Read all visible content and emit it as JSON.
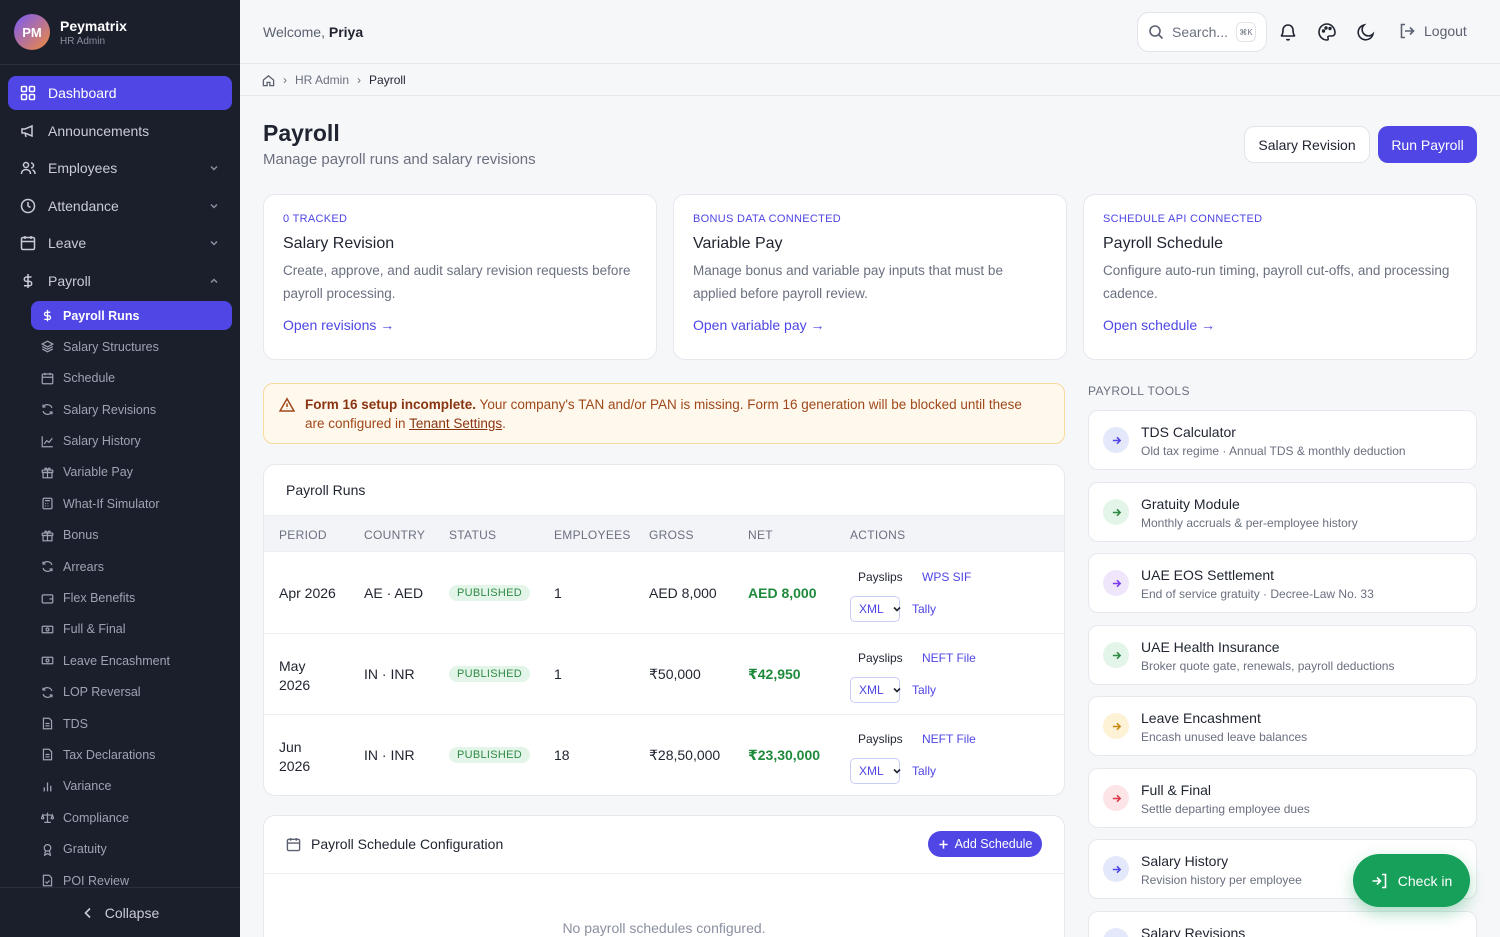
{
  "brand": {
    "initials": "PM",
    "name": "Peymatrix",
    "role": "HR Admin"
  },
  "nav": [
    {
      "label": "Dashboard",
      "icon": "grid-icon",
      "active": true
    },
    {
      "label": "Announcements",
      "icon": "megaphone-icon"
    },
    {
      "label": "Employees",
      "icon": "users-icon",
      "chevron": "down"
    },
    {
      "label": "Attendance",
      "icon": "clock-icon",
      "chevron": "down"
    },
    {
      "label": "Leave",
      "icon": "calendar-icon",
      "chevron": "down"
    },
    {
      "label": "Payroll",
      "icon": "dollar-icon",
      "chevron": "up"
    }
  ],
  "payroll_sub": [
    {
      "label": "Payroll Runs",
      "active": true
    },
    {
      "label": "Salary Structures"
    },
    {
      "label": "Schedule"
    },
    {
      "label": "Salary Revisions"
    },
    {
      "label": "Salary History"
    },
    {
      "label": "Variable Pay"
    },
    {
      "label": "What-If Simulator"
    },
    {
      "label": "Bonus"
    },
    {
      "label": "Arrears"
    },
    {
      "label": "Flex Benefits"
    },
    {
      "label": "Full & Final"
    },
    {
      "label": "Leave Encashment"
    },
    {
      "label": "LOP Reversal"
    },
    {
      "label": "TDS"
    },
    {
      "label": "Tax Declarations"
    },
    {
      "label": "Variance"
    },
    {
      "label": "Compliance"
    },
    {
      "label": "Gratuity"
    },
    {
      "label": "POI Review"
    }
  ],
  "collapse_label": "Collapse",
  "header": {
    "welcome": "Welcome,",
    "user": "Priya",
    "search_placeholder": "Search...",
    "search_kbd": "⌘K",
    "logout": "Logout"
  },
  "breadcrumb": {
    "parent": "HR Admin",
    "current": "Payroll"
  },
  "page": {
    "title": "Payroll",
    "subtitle": "Manage payroll runs and salary revisions",
    "btn_revision": "Salary Revision",
    "btn_run": "Run Payroll"
  },
  "feature_cards": [
    {
      "tag": "0 TRACKED",
      "title": "Salary Revision",
      "desc": "Create, approve, and audit salary revision requests before payroll processing.",
      "link": "Open revisions →"
    },
    {
      "tag": "BONUS DATA CONNECTED",
      "title": "Variable Pay",
      "desc": "Manage bonus and variable pay inputs that must be applied before payroll review.",
      "link": "Open variable pay →"
    },
    {
      "tag": "SCHEDULE API CONNECTED",
      "title": "Payroll Schedule",
      "desc": "Configure auto-run timing, payroll cut-offs, and processing cadence.",
      "link": "Open schedule →"
    }
  ],
  "alert": {
    "bold": "Form 16 setup incomplete.",
    "text": " Your company's TAN and/or PAN is missing. Form 16 generation will be blocked until these are configured in ",
    "link": "Tenant Settings",
    "end": "."
  },
  "runs": {
    "title": "Payroll Runs",
    "columns": [
      "PERIOD",
      "COUNTRY",
      "STATUS",
      "EMPLOYEES",
      "GROSS",
      "NET",
      "ACTIONS"
    ],
    "rows": [
      {
        "period": "Apr 2026",
        "country": "AE · AED",
        "status": "PUBLISHED",
        "employees": "1",
        "gross": "AED 8,000",
        "net": "AED 8,000",
        "payslips": "Payslips",
        "file": "WPS SIF",
        "format": "XML",
        "tally": "Tally"
      },
      {
        "period": "May 2026",
        "country": "IN · INR",
        "status": "PUBLISHED",
        "employees": "1",
        "gross": "₹50,000",
        "net": "₹42,950",
        "payslips": "Payslips",
        "file": "NEFT File",
        "format": "XML",
        "tally": "Tally"
      },
      {
        "period": "Jun 2026",
        "country": "IN · INR",
        "status": "PUBLISHED",
        "employees": "18",
        "gross": "₹28,50,000",
        "net": "₹23,30,000",
        "payslips": "Payslips",
        "file": "NEFT File",
        "format": "XML",
        "tally": "Tally"
      }
    ]
  },
  "schedule": {
    "title": "Payroll Schedule Configuration",
    "add": "Add Schedule",
    "empty": "No payroll schedules configured."
  },
  "tools": {
    "heading": "PAYROLL TOOLS",
    "items": [
      {
        "title": "TDS Calculator",
        "desc": "Old tax regime · Annual TDS & monthly deduction",
        "color": "#e4e8fb",
        "arrow": "#4f46e5"
      },
      {
        "title": "Gratuity Module",
        "desc": "Monthly accruals & per-employee history",
        "color": "#e3f5e8",
        "arrow": "#2f8a45"
      },
      {
        "title": "UAE EOS Settlement",
        "desc": "End of service gratuity · Decree-Law No. 33",
        "color": "#efe6fb",
        "arrow": "#7c3aed"
      },
      {
        "title": "UAE Health Insurance",
        "desc": "Broker quote gate, renewals, payroll deductions",
        "color": "#e3f5e8",
        "arrow": "#2f8a45"
      },
      {
        "title": "Leave Encashment",
        "desc": "Encash unused leave balances",
        "color": "#fdf1d6",
        "arrow": "#c98a12"
      },
      {
        "title": "Full & Final",
        "desc": "Settle departing employee dues",
        "color": "#fde5e7",
        "arrow": "#d83a4a"
      },
      {
        "title": "Salary History",
        "desc": "Revision history per employee",
        "color": "#e4e8fb",
        "arrow": "#4f46e5"
      },
      {
        "title": "Salary Revisions",
        "desc": "",
        "color": "#e4e8fb",
        "arrow": "#4f46e5"
      }
    ]
  },
  "checkin": "Check in"
}
